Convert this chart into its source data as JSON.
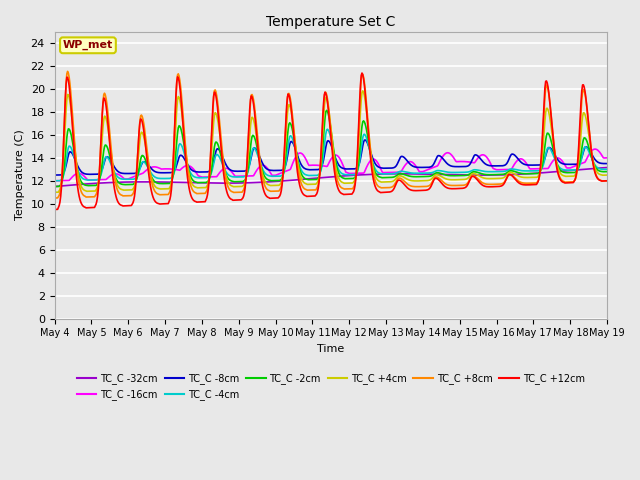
{
  "title": "Temperature Set C",
  "xlabel": "Time",
  "ylabel": "Temperature (C)",
  "ylim": [
    0,
    25
  ],
  "yticks": [
    0,
    2,
    4,
    6,
    8,
    10,
    12,
    14,
    16,
    18,
    20,
    22,
    24
  ],
  "x_labels": [
    "May 4",
    "May 5",
    "May 6",
    "May 7",
    "May 8",
    "May 9",
    "May 10",
    "May 11",
    "May 12",
    "May 13",
    "May 14",
    "May 15",
    "May 16",
    "May 17",
    "May 18",
    "May 19"
  ],
  "annotation_text": "WP_met",
  "annotation_color": "#8B0000",
  "annotation_bg": "#FFFFC0",
  "annotation_border": "#CCCC00",
  "bg_color": "#E8E8E8",
  "plot_bg": "#E8E8E8",
  "series": [
    {
      "label": "TC_C -32cm",
      "color": "#9900CC",
      "lw": 1.2
    },
    {
      "label": "TC_C -16cm",
      "color": "#FF00FF",
      "lw": 1.2
    },
    {
      "label": "TC_C -8cm",
      "color": "#0000CC",
      "lw": 1.2
    },
    {
      "label": "TC_C -4cm",
      "color": "#00CCCC",
      "lw": 1.2
    },
    {
      "label": "TC_C -2cm",
      "color": "#00CC00",
      "lw": 1.2
    },
    {
      "label": "TC_C +4cm",
      "color": "#CCCC00",
      "lw": 1.2
    },
    {
      "label": "TC_C +8cm",
      "color": "#FF8800",
      "lw": 1.2
    },
    {
      "label": "TC_C +12cm",
      "color": "#FF0000",
      "lw": 1.2
    }
  ],
  "legend_ncol1": 6,
  "legend_ncol2": 2
}
